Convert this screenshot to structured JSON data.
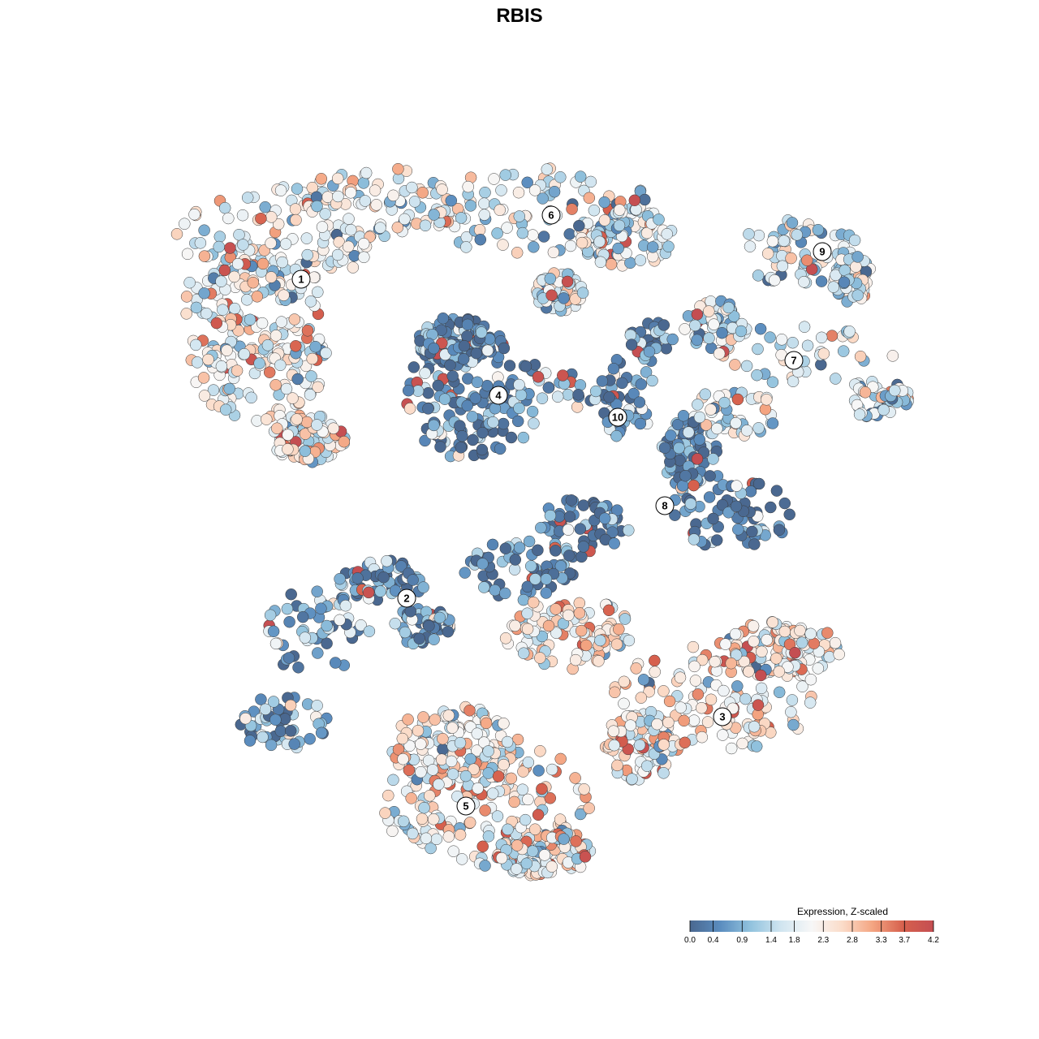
{
  "chart_data": {
    "type": "scatter",
    "title": "RBIS",
    "xlabel": "",
    "ylabel": "",
    "grid": false,
    "legend": {
      "title": "Expression, Z-scaled",
      "placement": "bottom-right",
      "ticks": [
        "0.0",
        "0.4",
        "0.9",
        "1.4",
        "1.8",
        "2.3",
        "2.8",
        "3.3",
        "3.7",
        "4.2"
      ],
      "tick_values": [
        0.0,
        0.4,
        0.9,
        1.4,
        1.8,
        2.3,
        2.8,
        3.3,
        3.7,
        4.2
      ],
      "min": 0.0,
      "max": 4.2
    },
    "color_scale": [
      "#4a6890",
      "#5b8dbf",
      "#92c3de",
      "#d1e5f0",
      "#f7f7f7",
      "#fbdcc9",
      "#f4a582",
      "#d6604d",
      "#c44e52"
    ],
    "clusters": [
      {
        "id": "1",
        "mean_expression": 2.0
      },
      {
        "id": "2",
        "mean_expression": 0.7
      },
      {
        "id": "3",
        "mean_expression": 2.2
      },
      {
        "id": "4",
        "mean_expression": 0.5
      },
      {
        "id": "5",
        "mean_expression": 2.1
      },
      {
        "id": "6",
        "mean_expression": 1.7
      },
      {
        "id": "7",
        "mean_expression": 1.6
      },
      {
        "id": "8",
        "mean_expression": 0.3
      },
      {
        "id": "9",
        "mean_expression": 1.6
      },
      {
        "id": "10",
        "mean_expression": 0.6
      }
    ]
  }
}
